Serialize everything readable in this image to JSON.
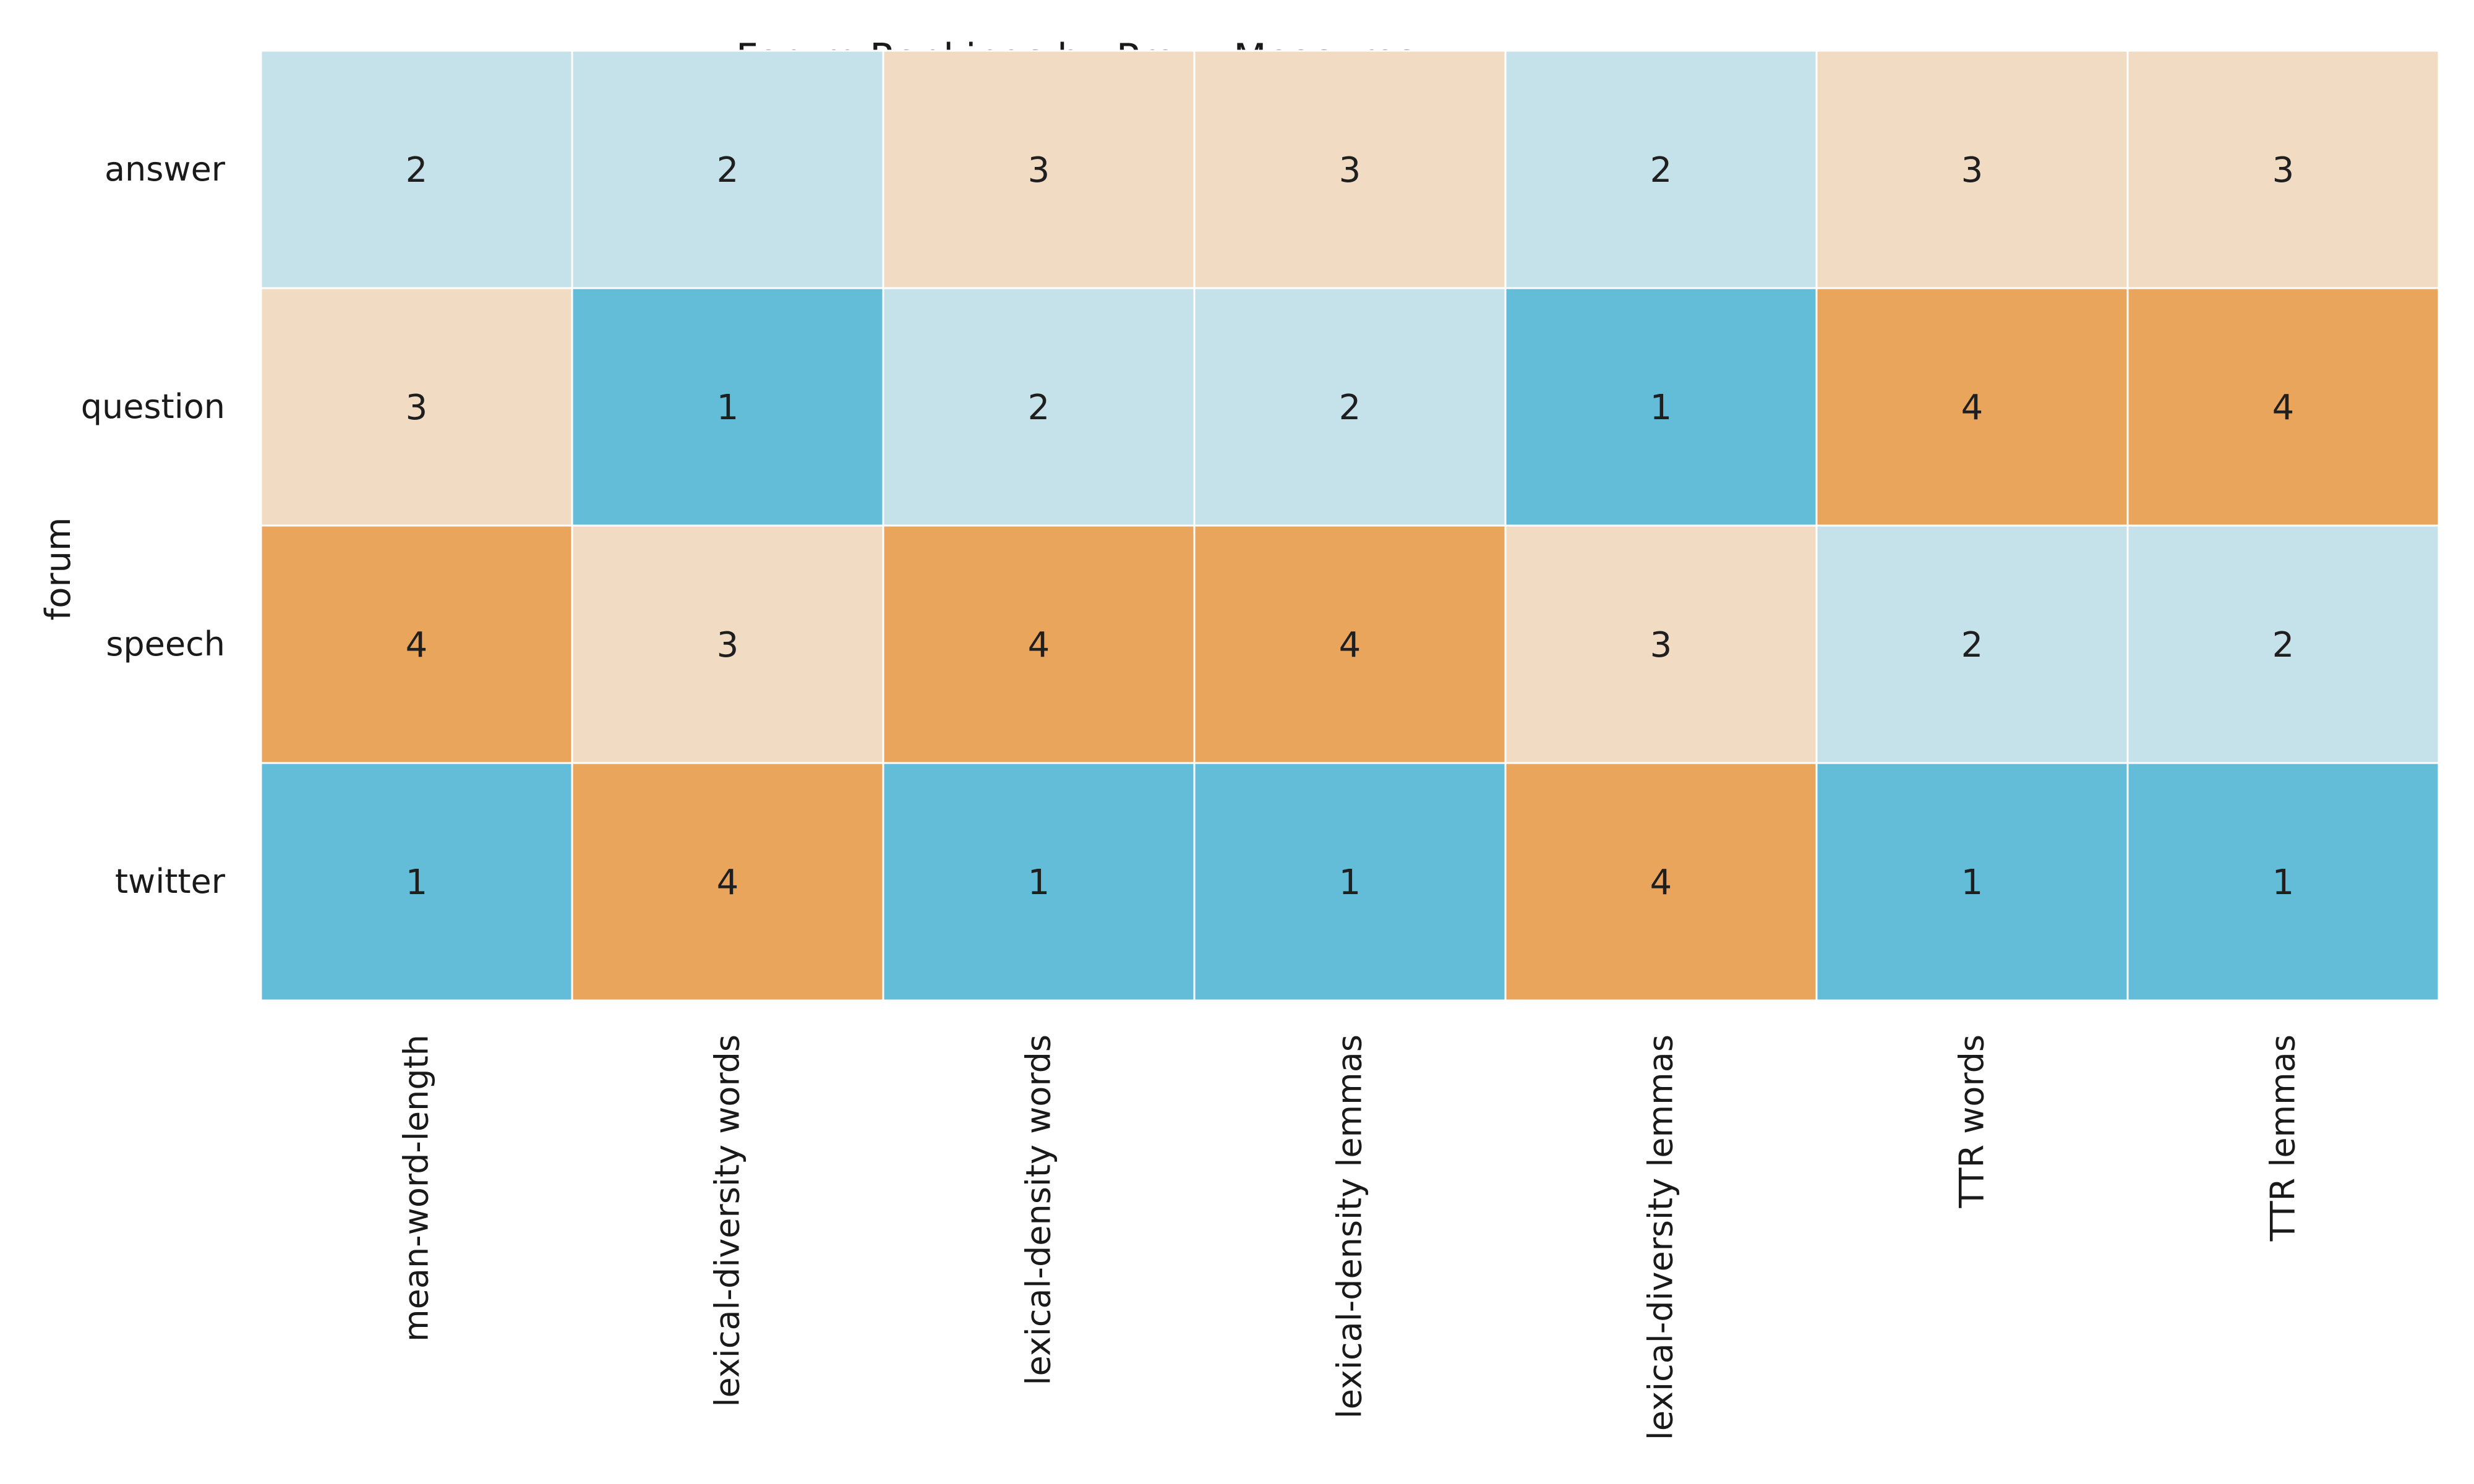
{
  "chart_data": {
    "type": "heatmap",
    "title": "Forum Rankings by Proxy Measures",
    "ylabel": "forum",
    "xlabel": "",
    "rows": [
      "answer",
      "question",
      "speech",
      "twitter"
    ],
    "columns": [
      "mean-word-length",
      "lexical-diversity words",
      "lexical-density words",
      "lexical-density lemmas",
      "lexical-diversity lemmas",
      "TTR words",
      "TTR lemmas"
    ],
    "values": [
      [
        2,
        2,
        3,
        3,
        2,
        3,
        3
      ],
      [
        3,
        1,
        2,
        2,
        1,
        4,
        4
      ],
      [
        4,
        3,
        4,
        4,
        3,
        2,
        2
      ],
      [
        1,
        4,
        1,
        1,
        4,
        1,
        1
      ]
    ],
    "colorbar": false,
    "colors": {
      "1": "#63bdd9",
      "2": "#c5e2ea",
      "3": "#f1dbc3",
      "4": "#e9a55c"
    }
  }
}
